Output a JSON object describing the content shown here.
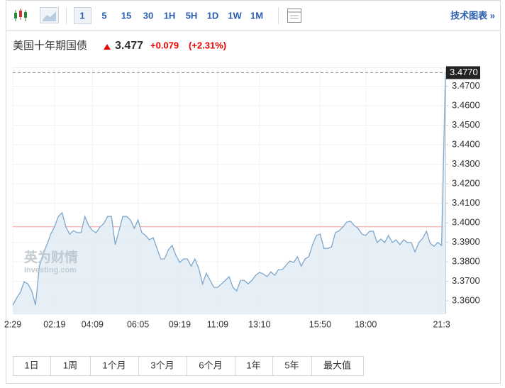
{
  "toolbar": {
    "intervals": [
      "1",
      "5",
      "15",
      "30",
      "1H",
      "5H",
      "1D",
      "1W",
      "1M"
    ],
    "tech_chart": "技术图表 »"
  },
  "header": {
    "name": "美国十年期国债",
    "price": "3.477",
    "change": "+0.079",
    "change_pct": "(+2.31%)"
  },
  "watermark": {
    "brand": "英为财情",
    "site": "Investing.com"
  },
  "ranges": [
    "1日",
    "1周",
    "1个月",
    "3个月",
    "6个月",
    "1年",
    "5年",
    "最大值"
  ],
  "chart_data": {
    "type": "area",
    "color": "#7ea7cb",
    "fill": "#e3edf5",
    "values": [
      3.3578,
      3.3614,
      3.3644,
      3.3698,
      3.3687,
      3.3651,
      3.3578,
      3.3778,
      3.384,
      3.3888,
      3.3942,
      3.3979,
      3.4033,
      3.4052,
      3.3979,
      3.3942,
      3.396,
      3.395,
      3.395,
      3.4033,
      3.3986,
      3.396,
      3.395,
      3.3979,
      3.3997,
      3.4033,
      3.4033,
      3.3888,
      3.396,
      3.4033,
      3.4033,
      3.4015,
      3.3971,
      3.4015,
      3.395,
      3.3935,
      3.3913,
      3.3924,
      3.3869,
      3.3815,
      3.3815,
      3.3862,
      3.3884,
      3.3833,
      3.3797,
      3.3815,
      3.3815,
      3.3778,
      3.3815,
      3.3767,
      3.3687,
      3.3742,
      3.3705,
      3.3669,
      3.3669,
      3.3687,
      3.3705,
      3.3724,
      3.3669,
      3.3651,
      3.3705,
      3.3705,
      3.3687,
      3.3705,
      3.3731,
      3.3746,
      3.3738,
      3.3724,
      3.3749,
      3.3731,
      3.376,
      3.376,
      3.3782,
      3.3804,
      3.3797,
      3.3826,
      3.3778,
      3.3815,
      3.3826,
      3.3888,
      3.3935,
      3.3942,
      3.3869,
      3.3869,
      3.3877,
      3.395,
      3.396,
      3.3979,
      3.4004,
      3.4008,
      3.3986,
      3.3971,
      3.3942,
      3.3935,
      3.3957,
      3.3957,
      3.3899,
      3.3917,
      3.3899,
      3.3935,
      3.3899,
      3.3913,
      3.3888,
      3.3913,
      3.3899,
      3.3899,
      3.3851,
      3.3899,
      3.392,
      3.3957,
      3.3895,
      3.388,
      3.3899,
      3.3884,
      3.477
    ],
    "current_label": "3.4770",
    "prev_close": 3.398,
    "xticks": [
      {
        "value": 0,
        "label": "2:29"
      },
      {
        "value": 11,
        "label": "02:19"
      },
      {
        "value": 21,
        "label": "04:09"
      },
      {
        "value": 33,
        "label": "06:05"
      },
      {
        "value": 44,
        "label": "09:19"
      },
      {
        "value": 54,
        "label": "11:09"
      },
      {
        "value": 65,
        "label": "13:10"
      },
      {
        "value": 81,
        "label": "15:50"
      },
      {
        "value": 93,
        "label": "18:00"
      },
      {
        "value": 113,
        "label": "21:3"
      }
    ],
    "ylim": [
      3.3535,
      3.4797
    ],
    "yticks": [
      {
        "value": 3.36,
        "label": "3.3600"
      },
      {
        "value": 3.37,
        "label": "3.3700"
      },
      {
        "value": 3.38,
        "label": "3.3800"
      },
      {
        "value": 3.39,
        "label": "3.3900"
      },
      {
        "value": 3.4,
        "label": "3.4000"
      },
      {
        "value": 3.41,
        "label": "3.4100"
      },
      {
        "value": 3.42,
        "label": "3.4200"
      },
      {
        "value": 3.43,
        "label": "3.4300"
      },
      {
        "value": 3.44,
        "label": "3.4400"
      },
      {
        "value": 3.45,
        "label": "3.4500"
      },
      {
        "value": 3.46,
        "label": "3.4600"
      },
      {
        "value": 3.47,
        "label": "3.4700"
      }
    ],
    "grid": true
  }
}
